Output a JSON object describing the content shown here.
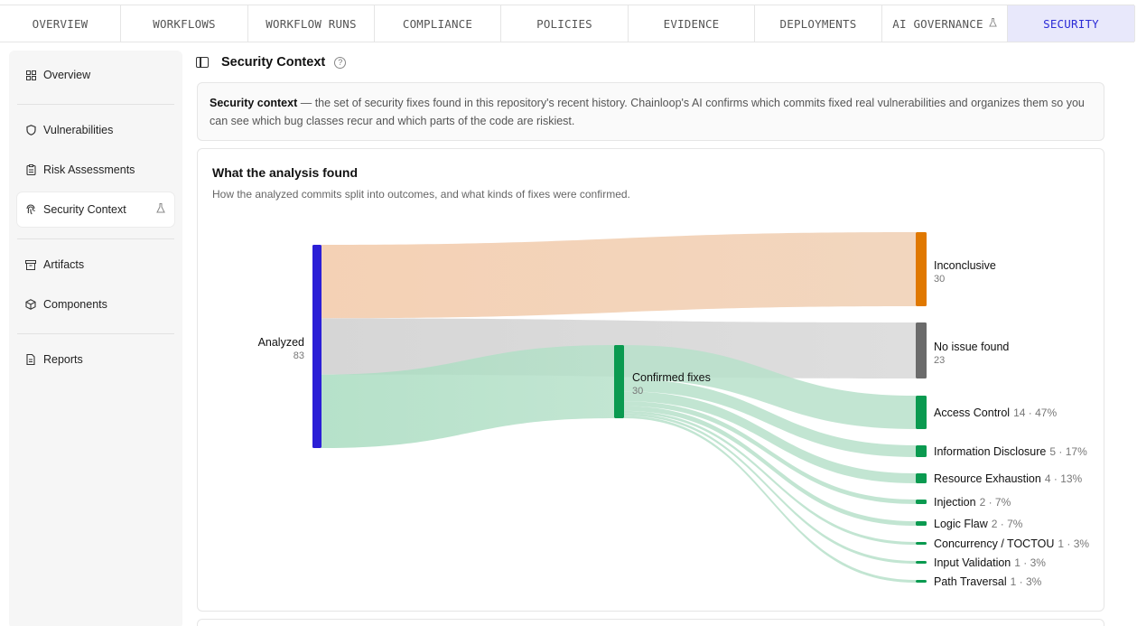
{
  "tabs": [
    {
      "label": "OVERVIEW",
      "width": 134
    },
    {
      "label": "WORKFLOWS",
      "width": 141
    },
    {
      "label": "WORKFLOW RUNS",
      "width": 140
    },
    {
      "label": "COMPLIANCE",
      "width": 140
    },
    {
      "label": "POLICIES",
      "width": 141
    },
    {
      "label": "EVIDENCE",
      "width": 140
    },
    {
      "label": "DEPLOYMENTS",
      "width": 141
    },
    {
      "label": "AI GOVERNANCE",
      "width": 139
    },
    {
      "label": "SECURITY",
      "width": 141
    }
  ],
  "sidebar": {
    "items": [
      {
        "label": "Overview",
        "icon": "grid-icon"
      },
      {
        "label": "Vulnerabilities",
        "icon": "shield-icon"
      },
      {
        "label": "Risk Assessments",
        "icon": "clipboard-icon"
      },
      {
        "label": "Security Context",
        "icon": "fingerprint-icon"
      },
      {
        "label": "Artifacts",
        "icon": "archive-icon"
      },
      {
        "label": "Components",
        "icon": "package-icon"
      },
      {
        "label": "Reports",
        "icon": "file-icon"
      }
    ]
  },
  "header": {
    "title": "Security Context",
    "help": "?"
  },
  "context": {
    "term": "Security context",
    "text": " — the set of security fixes found in this repository's recent history. Chainloop's AI confirms which commits fixed real vulnerabilities and organizes them so you can see which bug classes recur and which parts of the code are riskiest."
  },
  "analysis": {
    "title": "What the analysis found",
    "subtitle": "How the analyzed commits split into outcomes, and what kinds of fixes were confirmed."
  },
  "colors": {
    "analyzed": "#2b1fd6",
    "inconclusive": "#e07800",
    "no_issue": "#6b6b6b",
    "confirmed": "#0a9a50",
    "flow_inconclusive": "#f0cfb3",
    "flow_no_issue": "#d8d8d8",
    "flow_confirmed": "#b7e1ca",
    "tab_active_bg": "#e8e8fb",
    "tab_active_text": "#2b2bd6"
  },
  "chart_data": {
    "type": "sankey",
    "source": {
      "name": "Analyzed",
      "value": 83
    },
    "outcomes": [
      {
        "name": "Inconclusive",
        "value": 30
      },
      {
        "name": "No issue found",
        "value": 23
      },
      {
        "name": "Confirmed fixes",
        "value": 30
      }
    ],
    "confirmed_breakdown": [
      {
        "name": "Access Control",
        "value": 14,
        "pct": "47%"
      },
      {
        "name": "Information Disclosure",
        "value": 5,
        "pct": "17%"
      },
      {
        "name": "Resource Exhaustion",
        "value": 4,
        "pct": "13%"
      },
      {
        "name": "Injection",
        "value": 2,
        "pct": "7%"
      },
      {
        "name": "Logic Flaw",
        "value": 2,
        "pct": "7%"
      },
      {
        "name": "Concurrency / TOCTOU",
        "value": 1,
        "pct": "3%"
      },
      {
        "name": "Input Validation",
        "value": 1,
        "pct": "3%"
      },
      {
        "name": "Path Traversal",
        "value": 1,
        "pct": "3%"
      }
    ]
  }
}
